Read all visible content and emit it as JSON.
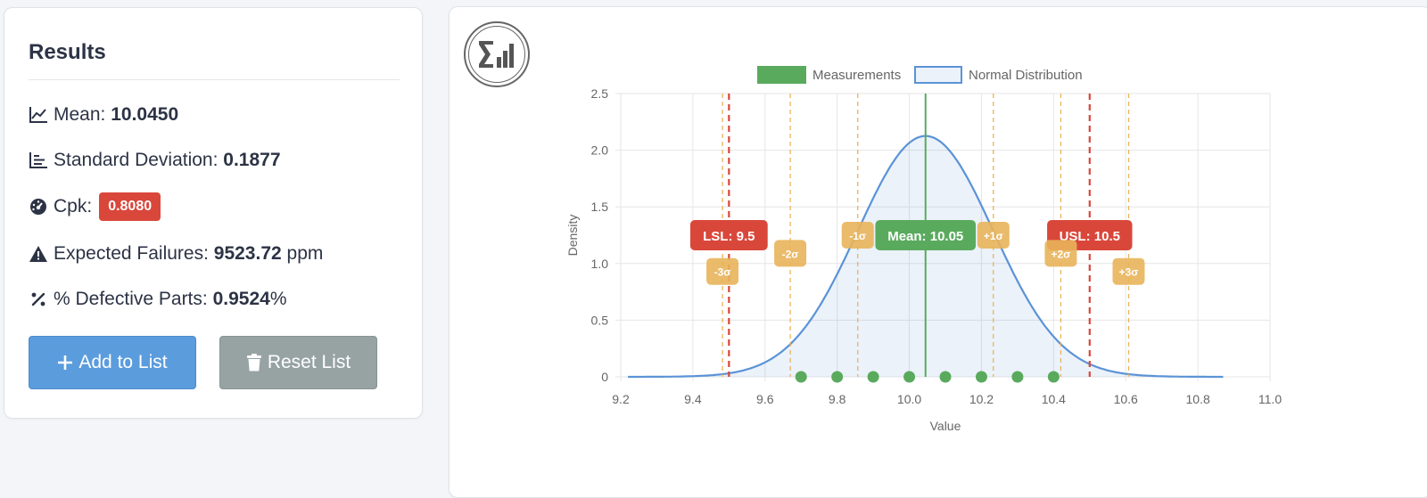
{
  "results": {
    "title": "Results",
    "mean_label": "Mean:",
    "mean_value": "10.0450",
    "std_label": "Standard Deviation:",
    "std_value": "0.1877",
    "cpk_label": "Cpk:",
    "cpk_value": "0.8080",
    "failures_label": "Expected Failures:",
    "failures_value": "9523.72",
    "failures_unit": "ppm",
    "defective_label": "% Defective Parts:",
    "defective_value": "0.9524",
    "defective_unit": "%"
  },
  "buttons": {
    "add_label": "Add to List",
    "reset_label": "Reset List"
  },
  "colors": {
    "cpk_badge": "#d9473b",
    "add_button": "#5b9cdd",
    "reset_button": "#97a3a3",
    "measurements": "#5aaa5e",
    "normal_line": "#5b93d6",
    "spec_limit": "#d9473b",
    "sigma": "#e8b45a"
  },
  "chart_data": {
    "type": "line",
    "xlabel": "Value",
    "ylabel": "Density",
    "xlim": [
      9.2,
      11.0
    ],
    "ylim": [
      0,
      2.5
    ],
    "x_ticks": [
      "9.2",
      "9.4",
      "9.6",
      "9.8",
      "10.0",
      "10.2",
      "10.4",
      "10.6",
      "10.8",
      "11.0"
    ],
    "y_ticks": [
      "0",
      "0.5",
      "1.0",
      "1.5",
      "2.0",
      "2.5"
    ],
    "legend_position": "top-center",
    "series": [
      {
        "name": "Measurements",
        "type": "scatter",
        "x": [
          9.7,
          9.8,
          9.9,
          10.0,
          10.1,
          10.2,
          10.3,
          10.4
        ],
        "y": [
          0,
          0,
          0,
          0,
          0,
          0,
          0,
          0
        ]
      },
      {
        "name": "Normal Distribution",
        "type": "area",
        "mean": 10.045,
        "std": 0.1877,
        "x_range": [
          9.22,
          10.87
        ]
      }
    ],
    "annotations": [
      {
        "label": "LSL: 9.5",
        "x": 9.5,
        "kind": "spec",
        "label_y": 1.25
      },
      {
        "label": "USL: 10.5",
        "x": 10.5,
        "kind": "spec",
        "label_y": 1.25
      },
      {
        "label": "Mean: 10.05",
        "x": 10.045,
        "kind": "mean",
        "label_y": 1.25
      },
      {
        "label": "-3σ",
        "x": 9.482,
        "kind": "sigma",
        "label_y": 0.93
      },
      {
        "label": "-2σ",
        "x": 9.67,
        "kind": "sigma",
        "label_y": 1.09
      },
      {
        "label": "-1σ",
        "x": 9.857,
        "kind": "sigma",
        "label_y": 1.25
      },
      {
        "label": "+1σ",
        "x": 10.233,
        "kind": "sigma",
        "label_y": 1.25
      },
      {
        "label": "+2σ",
        "x": 10.42,
        "kind": "sigma",
        "label_y": 1.09
      },
      {
        "label": "+3σ",
        "x": 10.608,
        "kind": "sigma",
        "label_y": 0.93
      }
    ]
  }
}
